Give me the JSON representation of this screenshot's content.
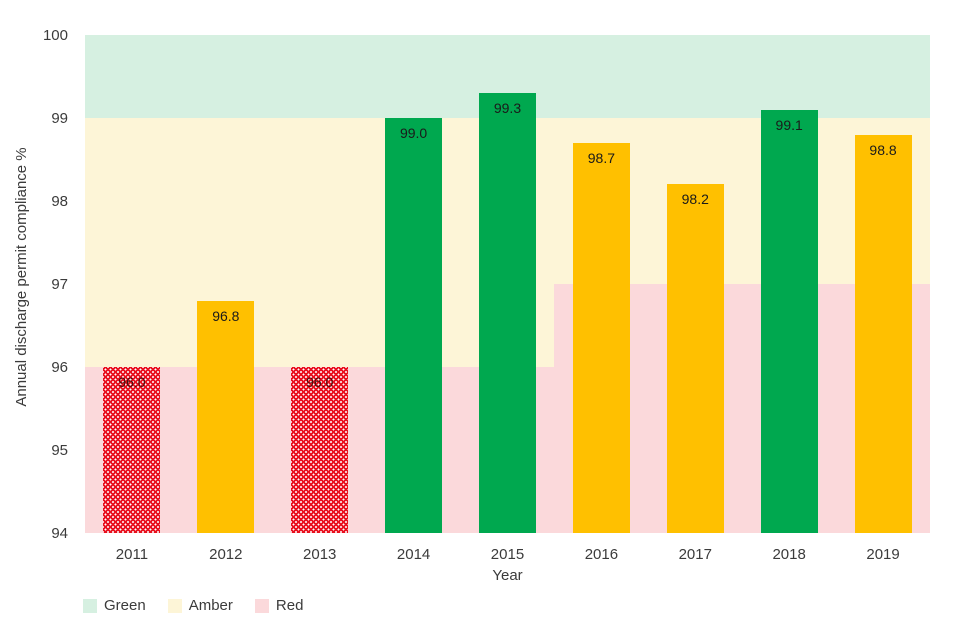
{
  "chart_data": {
    "type": "bar",
    "title": "",
    "xlabel": "Year",
    "ylabel": "Annual discharge permit compliance %",
    "categories": [
      "2011",
      "2012",
      "2013",
      "2014",
      "2015",
      "2016",
      "2017",
      "2018",
      "2019"
    ],
    "values": [
      96.0,
      96.8,
      96.0,
      99.0,
      99.3,
      98.7,
      98.2,
      99.1,
      98.8
    ],
    "data_labels": [
      "96.0",
      "96.8",
      "96.0",
      "99.0",
      "99.3",
      "98.7",
      "98.2",
      "99.1",
      "98.8"
    ],
    "bar_status": [
      "red",
      "amber",
      "red",
      "green",
      "green",
      "amber",
      "amber",
      "green",
      "amber"
    ],
    "ylim": [
      94,
      100
    ],
    "yticks": [
      "94",
      "95",
      "96",
      "97",
      "98",
      "99",
      "100"
    ],
    "ytick_values": [
      94,
      95,
      96,
      97,
      98,
      99,
      100
    ],
    "grid": false,
    "legend_position": "bottom-left",
    "zones": [
      {
        "status": "green",
        "from": 99,
        "to": 100,
        "slot_from": 0,
        "slot_to": 9
      },
      {
        "status": "amber",
        "from": 96,
        "to": 99,
        "slot_from": 0,
        "slot_to": 5
      },
      {
        "status": "amber",
        "from": 97,
        "to": 99,
        "slot_from": 5,
        "slot_to": 9
      },
      {
        "status": "red",
        "from": 94,
        "to": 96,
        "slot_from": 0,
        "slot_to": 5
      },
      {
        "status": "red",
        "from": 94,
        "to": 97,
        "slot_from": 5,
        "slot_to": 9
      }
    ]
  },
  "legend": {
    "entries": [
      {
        "label": "Green",
        "status": "green"
      },
      {
        "label": "Amber",
        "status": "amber"
      },
      {
        "label": "Red",
        "status": "red"
      }
    ]
  },
  "colors": {
    "bar_green": "#00a84f",
    "bar_amber": "#ffc000",
    "bar_red": "#e90f1e",
    "zone_green": "#d6f0e1",
    "zone_amber": "#fdf5d7",
    "zone_red": "#fbd9db",
    "axis_text": "#3b3b3b",
    "data_label_text": "#1a1a1a",
    "data_label_on_red": "#4d0d0d"
  }
}
